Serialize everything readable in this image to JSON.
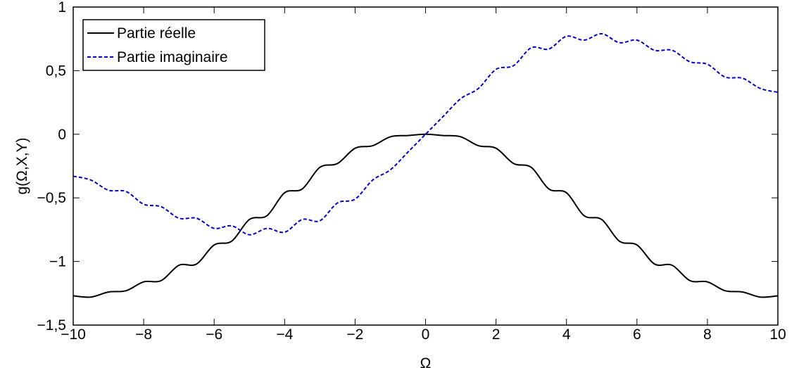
{
  "chart_data": {
    "type": "line",
    "xlabel": "Ω",
    "ylabel": "g(Ω,X,Y)",
    "xlim": [
      -10,
      10
    ],
    "ylim": [
      -1.5,
      1
    ],
    "xticks": [
      -10,
      -8,
      -6,
      -4,
      -2,
      0,
      2,
      4,
      6,
      8,
      10
    ],
    "yticks": [
      -1.5,
      -1,
      -0.5,
      0,
      0.5,
      1
    ],
    "xtick_labels": [
      "−10",
      "−8",
      "−6",
      "−4",
      "−2",
      "0",
      "2",
      "4",
      "6",
      "8",
      "10"
    ],
    "ytick_labels": [
      "−1,5",
      "−1",
      "−0,5",
      "0",
      "0,5",
      "1"
    ],
    "grid": false,
    "legend_position": "top-left",
    "series": [
      {
        "name": "Partie réelle",
        "color": "#000000",
        "style": "solid",
        "x": [
          -10,
          -9.5,
          -9,
          -8.5,
          -8,
          -7.5,
          -7,
          -6.5,
          -6,
          -5.5,
          -5,
          -4.5,
          -4,
          -3.5,
          -3,
          -2.5,
          -2,
          -1.5,
          -1,
          -0.5,
          0,
          0.5,
          1,
          1.5,
          2,
          2.5,
          3,
          3.5,
          4,
          4.5,
          5,
          5.5,
          6,
          6.5,
          7,
          7.5,
          8,
          8.5,
          9,
          9.5,
          10
        ],
        "y": [
          -1.27,
          -1.28,
          -1.24,
          -1.23,
          -1.16,
          -1.15,
          -1.03,
          -1.02,
          -0.87,
          -0.84,
          -0.67,
          -0.64,
          -0.46,
          -0.43,
          -0.26,
          -0.23,
          -0.11,
          -0.09,
          -0.02,
          -0.01,
          0,
          -0.01,
          -0.02,
          -0.09,
          -0.11,
          -0.23,
          -0.26,
          -0.43,
          -0.46,
          -0.64,
          -0.67,
          -0.84,
          -0.87,
          -1.02,
          -1.03,
          -1.15,
          -1.16,
          -1.23,
          -1.24,
          -1.28,
          -1.27
        ]
      },
      {
        "name": "Partie imaginaire",
        "color": "#0000cc",
        "style": "dashed",
        "x": [
          -10,
          -9.5,
          -9,
          -8.5,
          -8,
          -7.5,
          -7,
          -6.5,
          -6,
          -5.5,
          -5,
          -4.5,
          -4,
          -3.5,
          -3,
          -2.5,
          -2,
          -1.5,
          -1,
          -0.5,
          0,
          0.5,
          1,
          1.5,
          2,
          2.5,
          3,
          3.5,
          4,
          4.5,
          5,
          5.5,
          6,
          6.5,
          7,
          7.5,
          8,
          8.5,
          9,
          9.5,
          10
        ],
        "y": [
          -0.33,
          -0.36,
          -0.44,
          -0.45,
          -0.55,
          -0.57,
          -0.66,
          -0.66,
          -0.74,
          -0.72,
          -0.79,
          -0.74,
          -0.77,
          -0.67,
          -0.68,
          -0.54,
          -0.51,
          -0.36,
          -0.28,
          -0.14,
          0,
          0.14,
          0.28,
          0.36,
          0.51,
          0.54,
          0.68,
          0.67,
          0.77,
          0.74,
          0.79,
          0.72,
          0.74,
          0.66,
          0.66,
          0.57,
          0.55,
          0.45,
          0.44,
          0.36,
          0.33
        ]
      }
    ]
  }
}
